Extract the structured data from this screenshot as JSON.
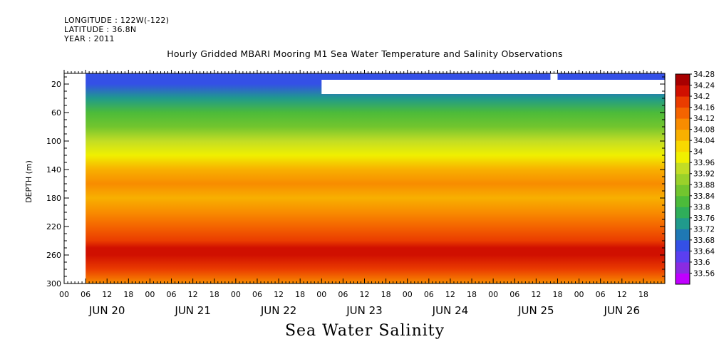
{
  "meta": {
    "longitude": "LONGITUDE : 122W(-122)",
    "latitude": "LATITUDE : 36.8N",
    "year": "YEAR : 2011"
  },
  "title": "Hourly Gridded MBARI Mooring M1 Sea Water Temperature and Salinity Observations",
  "footer_title": "Sea Water Salinity",
  "chart_data": {
    "type": "heatmap",
    "title": "Hourly Gridded MBARI Mooring M1 Sea Water Temperature and Salinity Observations",
    "variable": "Sea Water Salinity",
    "xlabel": "",
    "ylabel": "DEPTH (m)",
    "x_hour_ticks": [
      "00",
      "06",
      "12",
      "18",
      "00",
      "06",
      "12",
      "18",
      "00",
      "06",
      "12",
      "18",
      "00",
      "06",
      "12",
      "18",
      "00",
      "06",
      "12",
      "18",
      "00",
      "06",
      "12",
      "18",
      "00",
      "06",
      "12",
      "18"
    ],
    "x_day_labels": [
      "JUN 20",
      "JUN 21",
      "JUN 22",
      "JUN 23",
      "JUN 24",
      "JUN 25",
      "JUN 26"
    ],
    "x_range_hours": [
      0,
      168
    ],
    "data_start_hour": 6,
    "data_end_hour": 167,
    "y_ticks": [
      20,
      60,
      100,
      140,
      180,
      220,
      260,
      300
    ],
    "y_range": [
      5,
      300
    ],
    "y_inverted": true,
    "colorbar_levels": [
      33.56,
      33.6,
      33.64,
      33.68,
      33.72,
      33.76,
      33.8,
      33.84,
      33.88,
      33.92,
      33.96,
      34,
      34.04,
      34.08,
      34.12,
      34.16,
      34.2,
      34.24,
      34.28
    ],
    "colorbar_labels": [
      "34.28",
      "34.24",
      "34.2",
      "34.16",
      "34.12",
      "34.08",
      "34.04",
      "34",
      "33.96",
      "33.92",
      "33.88",
      "33.84",
      "33.8",
      "33.76",
      "33.72",
      "33.68",
      "33.64",
      "33.6",
      "33.56"
    ],
    "colorbar_colors": [
      "#c000ff",
      "#8a2be2",
      "#5b3ff0",
      "#3450e6",
      "#1f78b4",
      "#209a8c",
      "#2fae5a",
      "#4cbb3a",
      "#72c52e",
      "#9ad12a",
      "#c2dd25",
      "#f0f000",
      "#f8d800",
      "#f8b000",
      "#f88c00",
      "#f46400",
      "#ea3c00",
      "#d01000",
      "#a80000"
    ],
    "depth_profile": [
      {
        "depth": 5,
        "salinity": 33.68
      },
      {
        "depth": 20,
        "salinity": 33.7
      },
      {
        "depth": 40,
        "salinity": 33.76
      },
      {
        "depth": 60,
        "salinity": 33.84
      },
      {
        "depth": 80,
        "salinity": 33.9
      },
      {
        "depth": 100,
        "salinity": 33.96
      },
      {
        "depth": 120,
        "salinity": 34.02
      },
      {
        "depth": 140,
        "salinity": 34.08
      },
      {
        "depth": 160,
        "salinity": 34.12
      },
      {
        "depth": 180,
        "salinity": 34.11
      },
      {
        "depth": 200,
        "salinity": 34.12
      },
      {
        "depth": 220,
        "salinity": 34.16
      },
      {
        "depth": 240,
        "salinity": 34.22
      },
      {
        "depth": 250,
        "salinity": 34.26
      },
      {
        "depth": 260,
        "salinity": 34.25
      },
      {
        "depth": 280,
        "salinity": 34.22
      },
      {
        "depth": 300,
        "salinity": 34.14
      }
    ],
    "missing_regions": [
      {
        "x_hours": [
          0,
          6
        ],
        "depth": [
          5,
          300
        ]
      },
      {
        "x_hours": [
          72,
          168
        ],
        "depth": [
          14,
          34
        ]
      },
      {
        "x_hours": [
          136,
          138
        ],
        "depth": [
          5,
          14
        ]
      }
    ]
  }
}
